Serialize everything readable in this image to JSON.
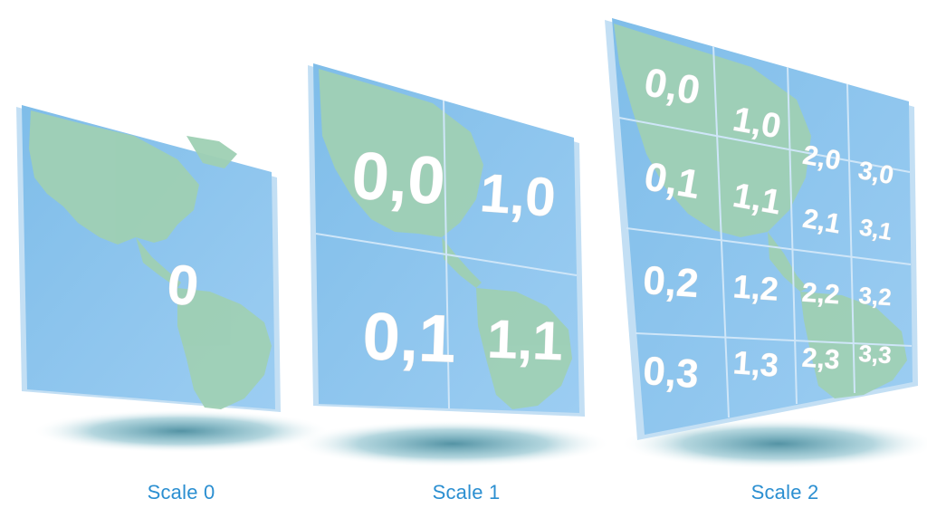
{
  "panels": [
    {
      "caption": "Scale 0",
      "grid": 1,
      "labels": [
        "0"
      ]
    },
    {
      "caption": "Scale 1",
      "grid": 2,
      "labels": [
        "0,0",
        "1,0",
        "0,1",
        "1,1"
      ]
    },
    {
      "caption": "Scale 2",
      "grid": 4,
      "labels": [
        "0,0",
        "1,0",
        "2,0",
        "3,0",
        "0,1",
        "1,1",
        "2,1",
        "3,1",
        "0,2",
        "1,2",
        "2,2",
        "3,2",
        "0,3",
        "1,3",
        "2,3",
        "3,3"
      ]
    }
  ],
  "colors": {
    "caption": "#2b8fd1",
    "ocean": "#8cc4ee",
    "land": "#9fd0b4",
    "grid": "#cfe6f8",
    "shadow": "#1b6f86"
  }
}
